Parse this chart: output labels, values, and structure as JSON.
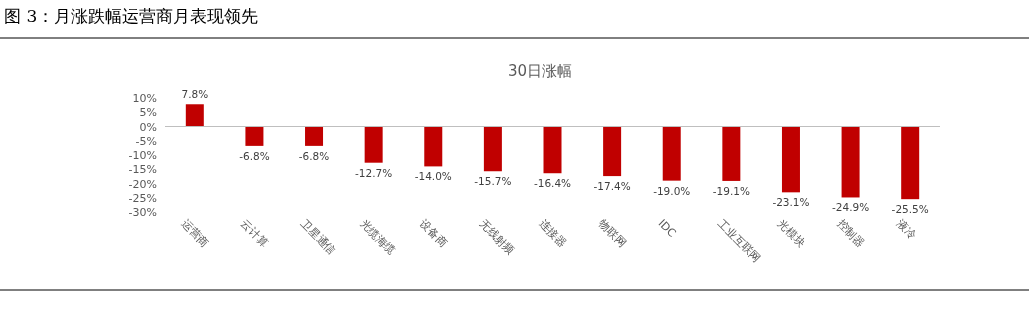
{
  "chart_data": {
    "type": "bar",
    "title": "图 3：月涨跌幅运营商月表现领先",
    "subtitle": "30日涨幅",
    "categories": [
      "运营商",
      "云计算",
      "卫星通信",
      "光缆海缆",
      "设备商",
      "无线射频",
      "连接器",
      "物联网",
      "IDC",
      "工业互联网",
      "光模块",
      "控制器",
      "液冷"
    ],
    "values": [
      7.8,
      -6.8,
      -6.8,
      -12.7,
      -14.0,
      -15.7,
      -16.4,
      -17.4,
      -19.0,
      -19.1,
      -23.1,
      -24.9,
      -25.5
    ],
    "value_labels": [
      "7.8%",
      "-6.8%",
      "-6.8%",
      "-12.7%",
      "-14.0%",
      "-15.7%",
      "-16.4%",
      "-17.4%",
      "-19.0%",
      "-19.1%",
      "-23.1%",
      "-24.9%",
      "-25.5%"
    ],
    "color": "#c00000",
    "ylim": [
      -30,
      10
    ],
    "yticks": [
      {
        "value": 10,
        "label": "10%"
      },
      {
        "value": 5,
        "label": "5%"
      },
      {
        "value": 0,
        "label": "0%"
      },
      {
        "value": -5,
        "label": "-5%"
      },
      {
        "value": -10,
        "label": "-10%"
      },
      {
        "value": -15,
        "label": "-15%"
      },
      {
        "value": -20,
        "label": "-20%"
      },
      {
        "value": -25,
        "label": "-25%"
      },
      {
        "value": -30,
        "label": "-30%"
      }
    ]
  }
}
